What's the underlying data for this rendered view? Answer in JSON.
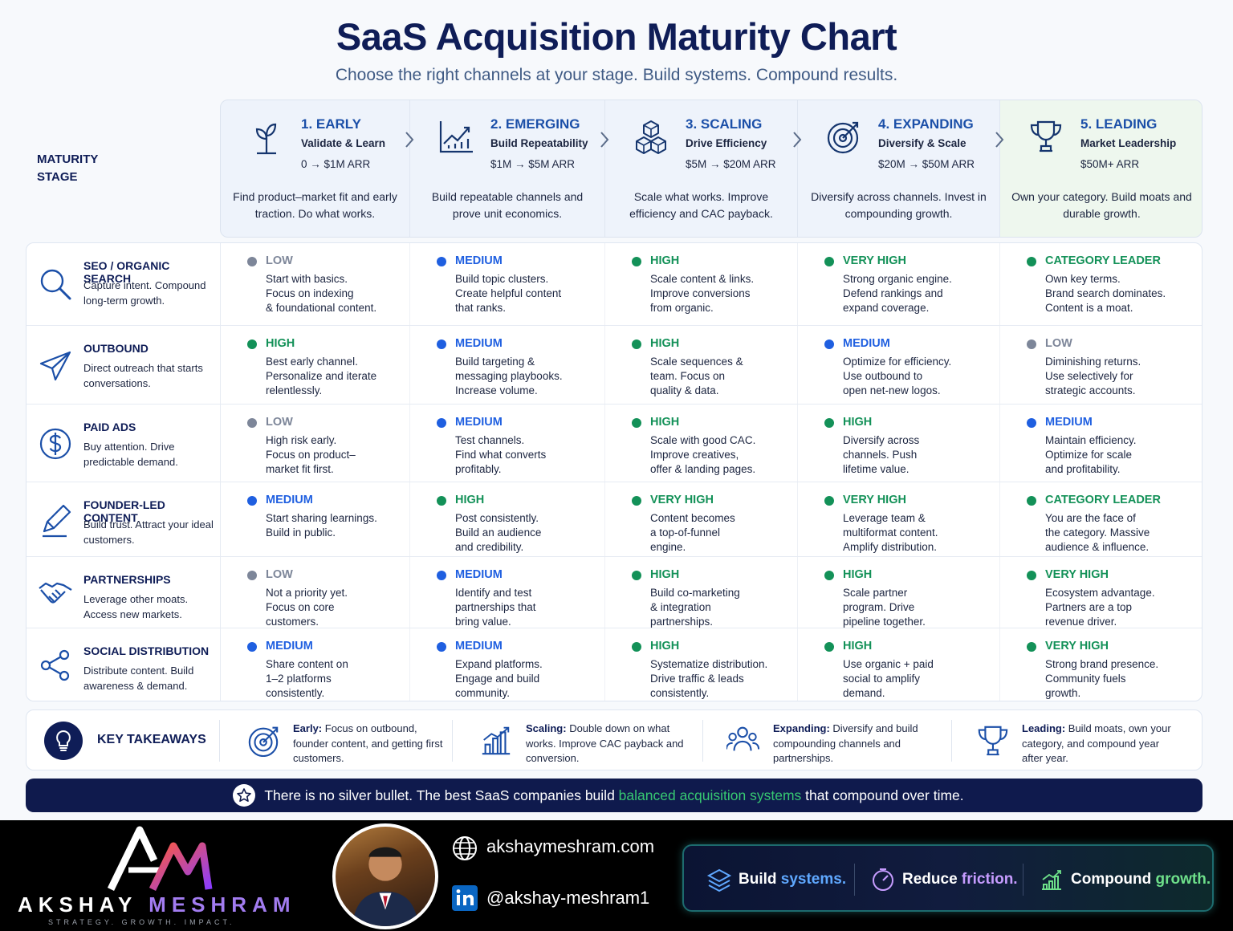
{
  "header": {
    "title": "SaaS Acquisition Maturity Chart",
    "subtitle": "Choose the right channels at your stage. Build systems. Compound results."
  },
  "stage_label": "MATURITY\nSTAGE",
  "stages": [
    {
      "title": "1. EARLY",
      "subtitle": "Validate & Learn",
      "arr": "0 → $1M ARR",
      "desc": "Find product–market fit and early traction. Do what works.",
      "icon": "plant-icon"
    },
    {
      "title": "2. EMERGING",
      "subtitle": "Build Repeatability",
      "arr": "$1M → $5M ARR",
      "desc": "Build repeatable channels and prove unit economics.",
      "icon": "growth-chart-icon"
    },
    {
      "title": "3. SCALING",
      "subtitle": "Drive Efficiency",
      "arr": "$5M → $20M ARR",
      "desc": "Scale what works. Improve efficiency and CAC payback.",
      "icon": "cubes-icon"
    },
    {
      "title": "4. EXPANDING",
      "subtitle": "Diversify & Scale",
      "arr": "$20M → $50M ARR",
      "desc": "Diversify across channels. Invest in compounding growth.",
      "icon": "target-icon"
    },
    {
      "title": "5. LEADING",
      "subtitle": "Market Leadership",
      "arr": "$50M+ ARR",
      "desc": "Own your category. Build moats and durable growth.",
      "icon": "trophy-icon"
    }
  ],
  "level_colors": {
    "LOW": "#7d8699",
    "MEDIUM": "#1f5fe0",
    "HIGH": "#139158",
    "VERY HIGH": "#139158",
    "CATEGORY LEADER": "#139158"
  },
  "channels": [
    {
      "name": "SEO / ORGANIC SEARCH",
      "desc": "Capture intent. Compound long-term growth.",
      "icon": "search-icon",
      "cells": [
        {
          "level": "LOW",
          "text": "Start with basics.\nFocus on indexing\n& foundational content."
        },
        {
          "level": "MEDIUM",
          "text": "Build topic clusters.\nCreate helpful content\nthat ranks."
        },
        {
          "level": "HIGH",
          "text": "Scale content & links.\nImprove conversions\nfrom organic."
        },
        {
          "level": "VERY HIGH",
          "text": "Strong organic engine.\nDefend rankings and\nexpand coverage."
        },
        {
          "level": "CATEGORY LEADER",
          "text": "Own key terms.\nBrand search dominates.\nContent is a moat."
        }
      ]
    },
    {
      "name": "OUTBOUND",
      "desc": "Direct outreach that starts conversations.",
      "icon": "paper-plane-icon",
      "cells": [
        {
          "level": "HIGH",
          "text": "Best early channel.\nPersonalize and iterate\nrelentlessly."
        },
        {
          "level": "MEDIUM",
          "text": "Build targeting &\nmessaging playbooks.\nIncrease volume."
        },
        {
          "level": "HIGH",
          "text": "Scale sequences &\nteam. Focus on\nquality & data."
        },
        {
          "level": "MEDIUM",
          "text": "Optimize for efficiency.\nUse outbound to\nopen net-new logos."
        },
        {
          "level": "LOW",
          "text": "Diminishing returns.\nUse selectively for\nstrategic accounts."
        }
      ]
    },
    {
      "name": "PAID ADS",
      "desc": "Buy attention. Drive predictable demand.",
      "icon": "dollar-coin-icon",
      "cells": [
        {
          "level": "LOW",
          "text": "High risk early.\nFocus on product–\nmarket fit first."
        },
        {
          "level": "MEDIUM",
          "text": "Test channels.\nFind what converts\nprofitably."
        },
        {
          "level": "HIGH",
          "text": "Scale with good CAC.\nImprove creatives,\noffer & landing pages."
        },
        {
          "level": "HIGH",
          "text": "Diversify across\nchannels. Push\nlifetime value."
        },
        {
          "level": "MEDIUM",
          "text": "Maintain efficiency.\nOptimize for scale\nand profitability."
        }
      ]
    },
    {
      "name": "FOUNDER-LED CONTENT",
      "desc": "Build trust. Attract your ideal customers.",
      "icon": "pen-icon",
      "cells": [
        {
          "level": "MEDIUM",
          "text": "Start sharing learnings.\nBuild in public."
        },
        {
          "level": "HIGH",
          "text": "Post consistently.\nBuild an audience\nand credibility."
        },
        {
          "level": "VERY HIGH",
          "text": "Content becomes\na top-of-funnel\nengine."
        },
        {
          "level": "VERY HIGH",
          "text": "Leverage team &\nmultiformat content.\nAmplify distribution."
        },
        {
          "level": "CATEGORY LEADER",
          "text": "You are the face of\nthe category. Massive\naudience & influence."
        }
      ]
    },
    {
      "name": "PARTNERSHIPS",
      "desc": "Leverage other moats. Access new markets.",
      "icon": "handshake-icon",
      "cells": [
        {
          "level": "LOW",
          "text": "Not a priority yet.\nFocus on core\ncustomers."
        },
        {
          "level": "MEDIUM",
          "text": "Identify and test\npartnerships that\nbring value."
        },
        {
          "level": "HIGH",
          "text": "Build co-marketing\n& integration\npartnerships."
        },
        {
          "level": "HIGH",
          "text": "Scale partner\nprogram. Drive\npipeline together."
        },
        {
          "level": "VERY HIGH",
          "text": "Ecosystem advantage.\nPartners are a top\nrevenue driver."
        }
      ]
    },
    {
      "name": "SOCIAL DISTRIBUTION",
      "desc": "Distribute content. Build awareness & demand.",
      "icon": "share-icon",
      "cells": [
        {
          "level": "MEDIUM",
          "text": "Share content on\n1–2 platforms\nconsistently."
        },
        {
          "level": "MEDIUM",
          "text": "Expand platforms.\nEngage and build\ncommunity."
        },
        {
          "level": "HIGH",
          "text": "Systematize distribution.\nDrive traffic & leads\nconsistently."
        },
        {
          "level": "HIGH",
          "text": "Use organic + paid\nsocial to amplify\ndemand."
        },
        {
          "level": "VERY HIGH",
          "text": "Strong brand presence.\nCommunity fuels\ngrowth."
        }
      ]
    }
  ],
  "takeaways": {
    "label": "KEY TAKEAWAYS",
    "items": [
      {
        "bold": "Early:",
        "text": " Focus on outbound, founder content, and getting first customers.",
        "icon": "target-icon"
      },
      {
        "bold": "Scaling:",
        "text": " Double down on what works. Improve CAC payback and conversion.",
        "icon": "bar-chart-icon"
      },
      {
        "bold": "Expanding:",
        "text": " Diversify and build compounding channels and partnerships.",
        "icon": "people-icon"
      },
      {
        "bold": "Leading:",
        "text": " Build moats, own your category, and compound year after year.",
        "icon": "trophy-icon"
      }
    ]
  },
  "banner": {
    "before": "There is no silver bullet. The best SaaS companies build ",
    "highlight": "balanced acquisition systems",
    "after": " that compound over time.",
    "highlight_color": "#37c872"
  },
  "footer": {
    "brand_first": "AKSHAY",
    "brand_last": "MESHRAM",
    "tagline": "STRATEGY. GROWTH. IMPACT.",
    "website": "akshaymeshram.com",
    "linkedin": "@akshay-meshram1",
    "pills": [
      {
        "a": "Build ",
        "b": "systems.",
        "icon": "layers-icon"
      },
      {
        "a": "Reduce ",
        "b": "friction.",
        "icon": "gauge-icon"
      },
      {
        "a": "Compound ",
        "b": "growth.",
        "icon": "growth-bars-icon"
      }
    ]
  }
}
